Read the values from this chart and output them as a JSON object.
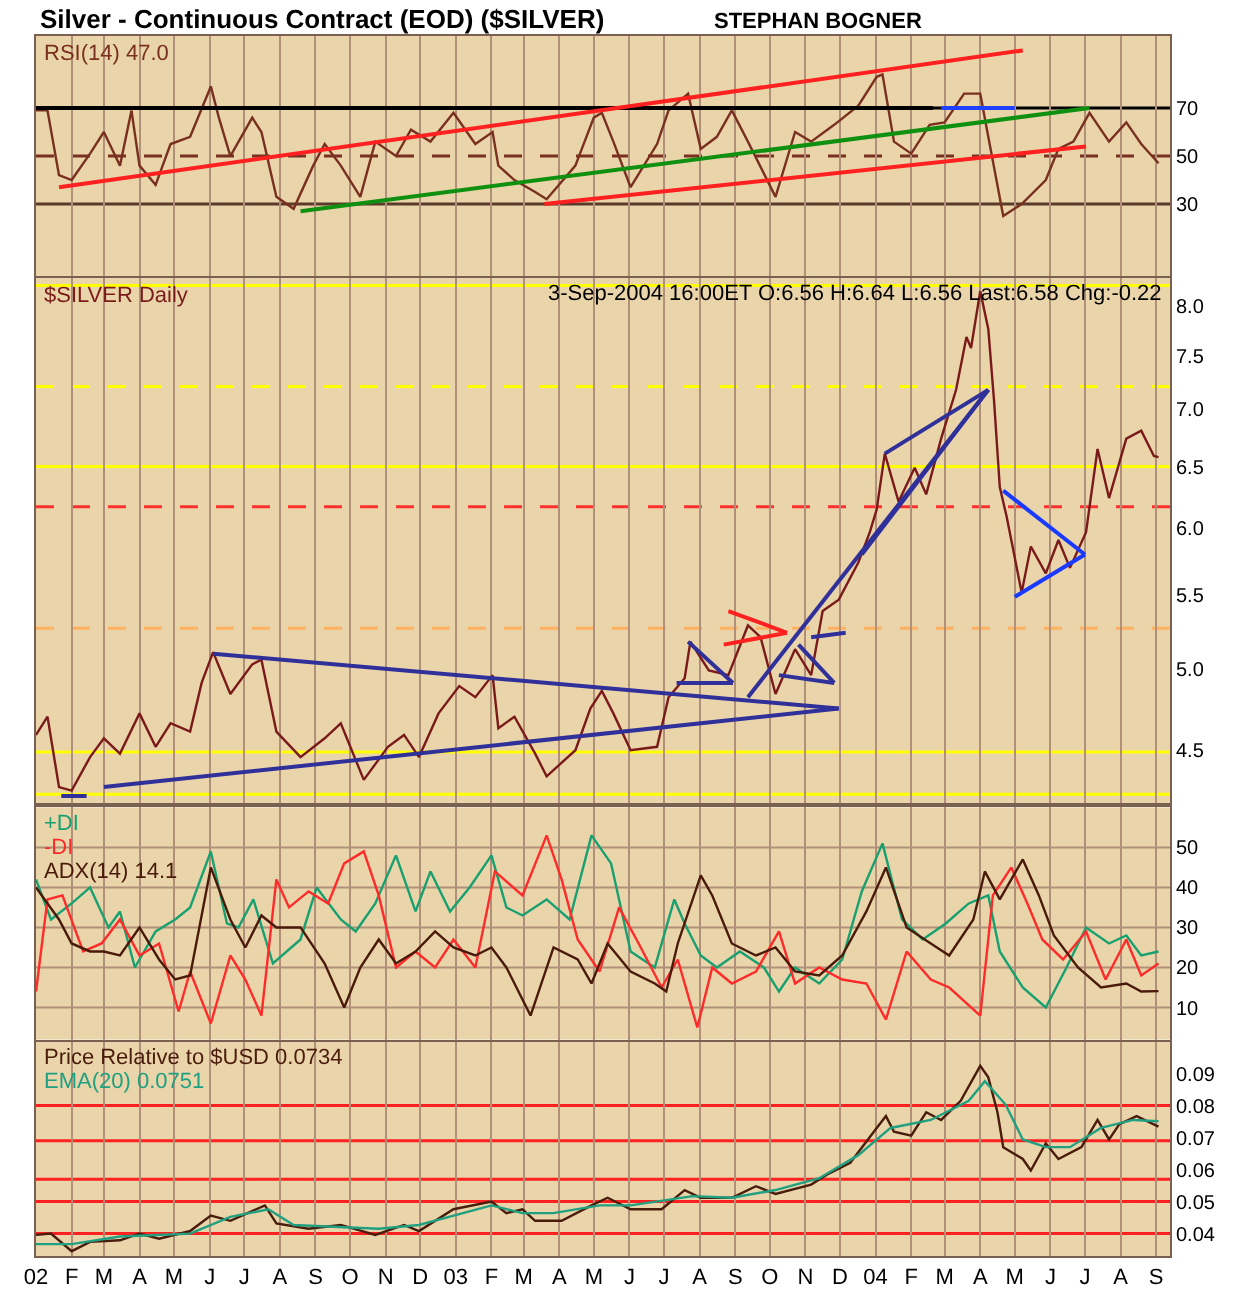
{
  "chart_data": [
    {
      "type": "line",
      "title": "Silver - Continuous Contract (EOD) ($SILVER)",
      "subtitle": "STEPHAN BOGNER",
      "legend": "top left",
      "grid": true,
      "tick_labels": "y",
      "xlim": [
        "2002-01-01",
        "2004-09-13"
      ],
      "xticks": [
        {
          "value": "2002-01-01",
          "label": null
        },
        {
          "value": "2002-02-01",
          "label": null
        },
        {
          "value": "2002-03-01",
          "label": null
        },
        {
          "value": "2002-04-01",
          "label": null
        },
        {
          "value": "2002-05-01",
          "label": null
        },
        {
          "value": "2002-06-01",
          "label": null
        },
        {
          "value": "2002-07-01",
          "label": null
        },
        {
          "value": "2002-08-01",
          "label": null
        },
        {
          "value": "2002-09-01",
          "label": null
        },
        {
          "value": "2002-10-01",
          "label": null
        },
        {
          "value": "2002-11-01",
          "label": null
        },
        {
          "value": "2002-12-01",
          "label": null
        },
        {
          "value": "2003-01-01",
          "label": null
        },
        {
          "value": "2003-02-01",
          "label": null
        },
        {
          "value": "2003-03-01",
          "label": null
        },
        {
          "value": "2003-04-01",
          "label": null
        },
        {
          "value": "2003-05-01",
          "label": null
        },
        {
          "value": "2003-06-01",
          "label": null
        },
        {
          "value": "2003-07-01",
          "label": null
        },
        {
          "value": "2003-08-01",
          "label": null
        },
        {
          "value": "2003-09-01",
          "label": null
        },
        {
          "value": "2003-10-01",
          "label": null
        },
        {
          "value": "2003-11-01",
          "label": null
        },
        {
          "value": "2003-12-01",
          "label": null
        },
        {
          "value": "2004-01-01",
          "label": null
        },
        {
          "value": "2004-02-01",
          "label": null
        },
        {
          "value": "2004-03-01",
          "label": null
        },
        {
          "value": "2004-04-01",
          "label": null
        },
        {
          "value": "2004-05-01",
          "label": null
        },
        {
          "value": "2004-06-01",
          "label": null
        },
        {
          "value": "2004-07-01",
          "label": null
        },
        {
          "value": "2004-08-01",
          "label": null
        },
        {
          "value": "2004-09-01",
          "label": null
        }
      ],
      "ylim": [
        0,
        100
      ],
      "yticks": [
        30,
        50,
        70
      ],
      "ref_lines": [
        {
          "axis": "y",
          "value": 70,
          "color": "#000000",
          "line_style": "solid"
        },
        {
          "axis": "y",
          "value": 50,
          "color": "#7a3020",
          "line_style": "dashed"
        },
        {
          "axis": "y",
          "value": 30,
          "color": "#5a3a2a",
          "line_style": "solid"
        }
      ],
      "series": [
        {
          "name": "RSI(14) 47.0",
          "color": "#7a3020",
          "x": [
            "2002-01-01",
            "2002-01-11",
            "2002-01-21",
            "2002-02-01",
            "2002-02-17",
            "2002-03-01",
            "2002-03-15",
            "2002-03-25",
            "2002-04-01",
            "2002-04-15",
            "2002-04-28",
            "2002-05-15",
            "2002-06-02",
            "2002-06-09",
            "2002-06-19",
            "2002-07-08",
            "2002-07-16",
            "2002-07-29",
            "2002-08-13",
            "2002-08-30",
            "2002-09-09",
            "2002-09-23",
            "2002-10-10",
            "2002-10-23",
            "2002-11-10",
            "2002-11-23",
            "2002-12-10",
            "2002-12-30",
            "2003-01-18",
            "2003-02-02",
            "2003-02-07",
            "2003-02-21",
            "2003-03-11",
            "2003-03-21",
            "2003-04-15",
            "2003-05-01",
            "2003-05-08",
            "2003-05-18",
            "2003-06-02",
            "2003-06-25",
            "2003-07-05",
            "2003-07-22",
            "2003-08-02",
            "2003-08-16",
            "2003-08-29",
            "2003-09-12",
            "2003-10-06",
            "2003-10-23",
            "2003-11-06",
            "2003-11-26",
            "2003-12-17",
            "2004-01-02",
            "2004-01-07",
            "2004-01-17",
            "2004-02-01",
            "2004-02-17",
            "2004-03-01",
            "2004-03-18",
            "2004-04-01",
            "2004-04-08",
            "2004-04-21",
            "2004-05-07",
            "2004-05-28",
            "2004-06-08",
            "2004-06-21",
            "2004-07-05",
            "2004-07-22",
            "2004-08-06",
            "2004-08-19",
            "2004-09-03"
          ],
          "values": [
            69,
            69,
            42,
            40,
            51,
            60,
            46,
            69,
            46,
            38,
            55,
            58,
            79,
            66,
            50,
            66,
            60,
            33,
            28,
            46,
            55,
            46,
            33,
            56,
            50,
            61,
            56,
            68,
            55,
            60,
            46,
            40,
            35,
            32,
            46,
            66,
            68,
            56,
            37,
            55,
            69,
            76,
            53,
            58,
            69,
            56,
            33,
            60,
            56,
            63,
            71,
            83,
            84,
            56,
            51,
            63,
            64,
            76,
            76,
            58,
            25,
            30,
            40,
            53,
            56,
            68,
            56,
            64,
            55,
            47.0
          ]
        },
        {
          "color": "#000000",
          "x": [
            "2002-01-01",
            "2004-02-20"
          ],
          "values": [
            70,
            70
          ]
        },
        {
          "color": "#2040ff",
          "x": [
            "2004-02-27",
            "2004-05-01"
          ],
          "values": [
            70,
            70
          ]
        },
        {
          "color": "#ff2020",
          "x": [
            "2002-01-21",
            "2004-05-08"
          ],
          "values": [
            37,
            94
          ]
        },
        {
          "color": "#109010",
          "x": [
            "2002-08-19",
            "2004-07-05"
          ],
          "values": [
            27,
            70
          ]
        },
        {
          "color": "#ff2020",
          "x": [
            "2003-03-19",
            "2004-07-02"
          ],
          "values": [
            30,
            54
          ]
        }
      ]
    },
    {
      "type": "line",
      "legend": "top left",
      "grid": "x",
      "tick_labels": "y",
      "log": true,
      "annotations": [
        "3-Sep-2004 16:00ET O:6.56 H:6.64 L:6.56 Last:6.58 Chg:-0.22"
      ],
      "xlim": [
        "2002-01-01",
        "2004-09-13"
      ],
      "xticks": [
        {
          "value": "2002-01-01",
          "label": null
        },
        {
          "value": "2002-02-01",
          "label": null
        },
        {
          "value": "2002-03-01",
          "label": null
        },
        {
          "value": "2002-04-01",
          "label": null
        },
        {
          "value": "2002-05-01",
          "label": null
        },
        {
          "value": "2002-06-01",
          "label": null
        },
        {
          "value": "2002-07-01",
          "label": null
        },
        {
          "value": "2002-08-01",
          "label": null
        },
        {
          "value": "2002-09-01",
          "label": null
        },
        {
          "value": "2002-10-01",
          "label": null
        },
        {
          "value": "2002-11-01",
          "label": null
        },
        {
          "value": "2002-12-01",
          "label": null
        },
        {
          "value": "2003-01-01",
          "label": null
        },
        {
          "value": "2003-02-01",
          "label": null
        },
        {
          "value": "2003-03-01",
          "label": null
        },
        {
          "value": "2003-04-01",
          "label": null
        },
        {
          "value": "2003-05-01",
          "label": null
        },
        {
          "value": "2003-06-01",
          "label": null
        },
        {
          "value": "2003-07-01",
          "label": null
        },
        {
          "value": "2003-08-01",
          "label": null
        },
        {
          "value": "2003-09-01",
          "label": null
        },
        {
          "value": "2003-10-01",
          "label": null
        },
        {
          "value": "2003-11-01",
          "label": null
        },
        {
          "value": "2003-12-01",
          "label": null
        },
        {
          "value": "2004-01-01",
          "label": null
        },
        {
          "value": "2004-02-01",
          "label": null
        },
        {
          "value": "2004-03-01",
          "label": null
        },
        {
          "value": "2004-04-01",
          "label": null
        },
        {
          "value": "2004-05-01",
          "label": null
        },
        {
          "value": "2004-06-01",
          "label": null
        },
        {
          "value": "2004-07-01",
          "label": null
        },
        {
          "value": "2004-08-01",
          "label": null
        },
        {
          "value": "2004-09-01",
          "label": null
        }
      ],
      "ylim": [
        4.2,
        8.3
      ],
      "yticks": [
        {
          "value": 4.5,
          "label": "4.5"
        },
        {
          "value": 5,
          "label": "5.0"
        },
        {
          "value": 5.5,
          "label": "5.5"
        },
        {
          "value": 6,
          "label": "6.0"
        },
        {
          "value": 6.5,
          "label": "6.5"
        },
        {
          "value": 7,
          "label": "7.0"
        },
        {
          "value": 7.5,
          "label": "7.5"
        },
        {
          "value": 8,
          "label": "8.0"
        }
      ],
      "ref_lines": [
        {
          "axis": "y",
          "value": 8.22,
          "color": "#ffff00",
          "line_style": "solid"
        },
        {
          "axis": "y",
          "value": 7.21,
          "color": "#ffff00",
          "line_style": "dashed"
        },
        {
          "axis": "y",
          "value": 6.5,
          "color": "#ffff00",
          "line_style": "solid"
        },
        {
          "axis": "y",
          "value": 6.17,
          "color": "#ff3030",
          "line_style": "dashed"
        },
        {
          "axis": "y",
          "value": 5.27,
          "color": "#ffb060",
          "line_style": "dashed"
        },
        {
          "axis": "y",
          "value": 4.49,
          "color": "#ffff00",
          "line_style": "solid"
        },
        {
          "axis": "y",
          "value": 4.25,
          "color": "#ffff00",
          "line_style": "solid"
        }
      ],
      "series": [
        {
          "name": "$SILVER Daily",
          "color": "#7a1a1a",
          "x": [
            "2002-01-01",
            "2002-01-11",
            "2002-01-21",
            "2002-02-01",
            "2002-02-17",
            "2002-03-01",
            "2002-03-15",
            "2002-04-01",
            "2002-04-15",
            "2002-04-28",
            "2002-05-15",
            "2002-05-25",
            "2002-06-04",
            "2002-06-19",
            "2002-07-08",
            "2002-07-16",
            "2002-07-29",
            "2002-08-19",
            "2002-09-09",
            "2002-09-23",
            "2002-10-13",
            "2002-11-03",
            "2002-11-17",
            "2002-11-30",
            "2002-12-17",
            "2003-01-04",
            "2003-01-18",
            "2003-02-02",
            "2003-02-07",
            "2003-02-21",
            "2003-03-11",
            "2003-03-21",
            "2003-04-15",
            "2003-04-28",
            "2003-05-08",
            "2003-05-18",
            "2003-06-02",
            "2003-06-25",
            "2003-07-05",
            "2003-07-19",
            "2003-07-24",
            "2003-08-09",
            "2003-08-26",
            "2003-09-12",
            "2003-09-23",
            "2003-10-06",
            "2003-10-23",
            "2003-11-06",
            "2003-11-16",
            "2003-11-30",
            "2003-12-17",
            "2003-12-27",
            "2004-01-02",
            "2004-01-09",
            "2004-01-21",
            "2004-02-04",
            "2004-02-14",
            "2004-02-27",
            "2004-03-11",
            "2004-03-20",
            "2004-03-24",
            "2004-04-01",
            "2004-04-08",
            "2004-04-13",
            "2004-04-18",
            "2004-04-24",
            "2004-04-28",
            "2004-05-07",
            "2004-05-15",
            "2004-05-28",
            "2004-06-08",
            "2004-06-18",
            "2004-07-02",
            "2004-07-12",
            "2004-07-22",
            "2004-08-06",
            "2004-08-19",
            "2004-08-30",
            "2004-09-03"
          ],
          "values": [
            4.59,
            4.7,
            4.29,
            4.27,
            4.46,
            4.57,
            4.48,
            4.72,
            4.52,
            4.66,
            4.61,
            4.91,
            5.11,
            4.84,
            5.03,
            5.06,
            4.61,
            4.46,
            4.57,
            4.66,
            4.33,
            4.52,
            4.59,
            4.46,
            4.72,
            4.89,
            4.82,
            4.96,
            4.63,
            4.7,
            4.48,
            4.35,
            4.5,
            4.75,
            4.86,
            4.72,
            4.5,
            4.52,
            4.82,
            4.94,
            5.18,
            4.99,
            4.96,
            5.29,
            5.21,
            4.84,
            5.13,
            4.96,
            5.39,
            5.47,
            5.74,
            5.97,
            6.15,
            6.61,
            6.21,
            6.49,
            6.27,
            6.74,
            7.18,
            7.69,
            7.58,
            8.16,
            7.77,
            7.08,
            6.33,
            6.09,
            5.91,
            5.52,
            5.86,
            5.66,
            5.91,
            5.7,
            5.97,
            6.65,
            6.24,
            6.74,
            6.81,
            6.59,
            6.58
          ]
        },
        {
          "color": "#30309a",
          "x": [
            "2002-01-23",
            "2002-02-14"
          ],
          "values": [
            4.24,
            4.24
          ]
        },
        {
          "color": "#30309a",
          "x": [
            "2002-03-01",
            "2003-11-30"
          ],
          "values": [
            4.29,
            4.75
          ]
        },
        {
          "color": "#30309a",
          "x": [
            "2002-06-04",
            "2003-11-30"
          ],
          "values": [
            5.1,
            4.75
          ]
        },
        {
          "color": "#30309a",
          "x": [
            "2003-09-12",
            "2004-04-08"
          ],
          "values": [
            4.82,
            7.18
          ]
        },
        {
          "color": "#30309a",
          "x": [
            "2003-12-20",
            "2004-04-08"
          ],
          "values": [
            5.8,
            7.18
          ]
        },
        {
          "color": "#30309a",
          "x": [
            "2004-01-09",
            "2004-04-08"
          ],
          "values": [
            6.61,
            7.18
          ]
        },
        {
          "color": "#30309a",
          "x": [
            "2003-07-22",
            "2003-08-30"
          ],
          "values": [
            5.18,
            4.91
          ]
        },
        {
          "color": "#30309a",
          "x": [
            "2003-07-12",
            "2003-08-30"
          ],
          "values": [
            4.91,
            4.91
          ]
        },
        {
          "color": "#ff2020",
          "x": [
            "2003-08-26",
            "2003-10-16"
          ],
          "values": [
            5.39,
            5.24
          ]
        },
        {
          "color": "#ff2020",
          "x": [
            "2003-08-22",
            "2003-10-16"
          ],
          "values": [
            5.16,
            5.24
          ]
        },
        {
          "color": "#30309a",
          "x": [
            "2003-10-26",
            "2003-11-26"
          ],
          "values": [
            5.16,
            4.91
          ]
        },
        {
          "color": "#30309a",
          "x": [
            "2003-10-09",
            "2003-11-26"
          ],
          "values": [
            4.96,
            4.91
          ]
        },
        {
          "color": "#30309a",
          "x": [
            "2003-11-06",
            "2003-12-06"
          ],
          "values": [
            5.21,
            5.24
          ]
        },
        {
          "color": "#1a3aff",
          "x": [
            "2004-04-21",
            "2004-07-01"
          ],
          "values": [
            6.3,
            5.8
          ]
        },
        {
          "color": "#1a3aff",
          "x": [
            "2004-05-01",
            "2004-07-01"
          ],
          "values": [
            5.49,
            5.8
          ]
        }
      ]
    },
    {
      "type": "line",
      "legend": "top left",
      "grid": true,
      "tick_labels": "y",
      "xlim": [
        "2002-01-01",
        "2004-09-13"
      ],
      "xticks": [
        {
          "value": "2002-01-01",
          "label": null
        },
        {
          "value": "2002-02-01",
          "label": null
        },
        {
          "value": "2002-03-01",
          "label": null
        },
        {
          "value": "2002-04-01",
          "label": null
        },
        {
          "value": "2002-05-01",
          "label": null
        },
        {
          "value": "2002-06-01",
          "label": null
        },
        {
          "value": "2002-07-01",
          "label": null
        },
        {
          "value": "2002-08-01",
          "label": null
        },
        {
          "value": "2002-09-01",
          "label": null
        },
        {
          "value": "2002-10-01",
          "label": null
        },
        {
          "value": "2002-11-01",
          "label": null
        },
        {
          "value": "2002-12-01",
          "label": null
        },
        {
          "value": "2003-01-01",
          "label": null
        },
        {
          "value": "2003-02-01",
          "label": null
        },
        {
          "value": "2003-03-01",
          "label": null
        },
        {
          "value": "2003-04-01",
          "label": null
        },
        {
          "value": "2003-05-01",
          "label": null
        },
        {
          "value": "2003-06-01",
          "label": null
        },
        {
          "value": "2003-07-01",
          "label": null
        },
        {
          "value": "2003-08-01",
          "label": null
        },
        {
          "value": "2003-09-01",
          "label": null
        },
        {
          "value": "2003-10-01",
          "label": null
        },
        {
          "value": "2003-11-01",
          "label": null
        },
        {
          "value": "2003-12-01",
          "label": null
        },
        {
          "value": "2004-01-01",
          "label": null
        },
        {
          "value": "2004-02-01",
          "label": null
        },
        {
          "value": "2004-03-01",
          "label": null
        },
        {
          "value": "2004-04-01",
          "label": null
        },
        {
          "value": "2004-05-01",
          "label": null
        },
        {
          "value": "2004-06-01",
          "label": null
        },
        {
          "value": "2004-07-01",
          "label": null
        },
        {
          "value": "2004-08-01",
          "label": null
        },
        {
          "value": "2004-09-01",
          "label": null
        }
      ],
      "ylim": [
        2,
        60
      ],
      "yticks": [
        10,
        20,
        30,
        40,
        50
      ],
      "series": [
        {
          "name": "+DI",
          "color": "#18a070",
          "x": [
            "2002-01-01",
            "2002-01-14",
            "2002-02-01",
            "2002-02-17",
            "2002-03-05",
            "2002-03-15",
            "2002-03-28",
            "2002-04-15",
            "2002-05-02",
            "2002-05-15",
            "2002-06-02",
            "2002-06-16",
            "2002-06-26",
            "2002-07-09",
            "2002-07-26",
            "2002-08-19",
            "2002-09-02",
            "2002-09-23",
            "2002-10-06",
            "2002-10-23",
            "2002-11-10",
            "2002-11-27",
            "2002-12-10",
            "2002-12-27",
            "2003-01-13",
            "2003-02-01",
            "2003-02-14",
            "2003-02-28",
            "2003-03-21",
            "2003-04-10",
            "2003-04-29",
            "2003-05-16",
            "2003-06-02",
            "2003-06-23",
            "2003-07-10",
            "2003-07-19",
            "2003-08-02",
            "2003-08-16",
            "2003-09-05",
            "2003-09-26",
            "2003-10-09",
            "2003-10-23",
            "2003-11-13",
            "2003-12-03",
            "2003-12-20",
            "2004-01-07",
            "2004-01-24",
            "2004-02-11",
            "2004-03-02",
            "2004-03-22",
            "2004-04-08",
            "2004-04-18",
            "2004-05-08",
            "2004-05-28",
            "2004-06-15",
            "2004-07-02",
            "2004-07-22",
            "2004-08-06",
            "2004-08-19",
            "2004-09-03"
          ],
          "values": [
            42,
            32,
            36,
            40,
            30,
            34,
            20,
            29,
            32,
            35,
            49,
            31,
            30,
            37,
            21,
            27,
            40,
            32,
            29,
            36,
            48,
            34,
            44,
            34,
            40,
            48,
            35,
            33,
            37,
            32,
            53,
            46,
            24,
            20,
            37,
            31,
            23,
            20,
            24,
            20,
            14,
            20,
            16,
            22,
            39,
            51,
            32,
            27,
            31,
            36,
            38,
            24,
            15,
            10,
            20,
            30,
            26,
            28,
            23,
            24
          ]
        },
        {
          "name": "-DI",
          "color": "#ff2a2a",
          "x": [
            "2002-01-01",
            "2002-01-11",
            "2002-01-24",
            "2002-02-11",
            "2002-02-27",
            "2002-03-15",
            "2002-04-01",
            "2002-04-18",
            "2002-05-05",
            "2002-05-15",
            "2002-06-02",
            "2002-06-19",
            "2002-07-02",
            "2002-07-16",
            "2002-07-29",
            "2002-08-09",
            "2002-08-26",
            "2002-09-12",
            "2002-09-26",
            "2002-10-13",
            "2002-10-26",
            "2002-11-10",
            "2002-11-27",
            "2002-12-14",
            "2002-12-30",
            "2003-01-18",
            "2003-02-04",
            "2003-02-28",
            "2003-03-21",
            "2003-04-03",
            "2003-04-17",
            "2003-05-06",
            "2003-05-23",
            "2003-06-09",
            "2003-06-29",
            "2003-07-13",
            "2003-07-30",
            "2003-08-12",
            "2003-08-29",
            "2003-09-19",
            "2003-10-09",
            "2003-10-23",
            "2003-11-13",
            "2003-12-03",
            "2003-12-24",
            "2004-01-10",
            "2004-01-28",
            "2004-02-18",
            "2004-03-05",
            "2004-04-01",
            "2004-04-12",
            "2004-04-28",
            "2004-05-12",
            "2004-05-25",
            "2004-06-12",
            "2004-07-02",
            "2004-07-19",
            "2004-08-06",
            "2004-08-19",
            "2004-09-03"
          ],
          "values": [
            14,
            37,
            38,
            24,
            26,
            32,
            23,
            26,
            9,
            19,
            6,
            23,
            17,
            8,
            42,
            35,
            39,
            36,
            46,
            49,
            38,
            20,
            24,
            20,
            27,
            20,
            44,
            38,
            53,
            42,
            27,
            19,
            35,
            26,
            15,
            22,
            5,
            20,
            16,
            19,
            29,
            16,
            20,
            17,
            16,
            7,
            24,
            17,
            15,
            8,
            38,
            45,
            36,
            27,
            22,
            29,
            17,
            27,
            18,
            21
          ]
        },
        {
          "name": "ADX(14) 14.1",
          "color": "#4a1a0a",
          "x": [
            "2002-01-01",
            "2002-01-21",
            "2002-02-01",
            "2002-02-17",
            "2002-03-01",
            "2002-03-15",
            "2002-04-01",
            "2002-04-18",
            "2002-05-02",
            "2002-05-15",
            "2002-06-02",
            "2002-06-19",
            "2002-07-02",
            "2002-07-16",
            "2002-07-29",
            "2002-08-19",
            "2002-09-09",
            "2002-09-26",
            "2002-10-10",
            "2002-10-26",
            "2002-11-10",
            "2002-11-27",
            "2002-12-14",
            "2002-12-30",
            "2003-01-18",
            "2003-02-01",
            "2003-02-14",
            "2003-03-07",
            "2003-03-27",
            "2003-04-17",
            "2003-04-29",
            "2003-05-13",
            "2003-06-02",
            "2003-06-23",
            "2003-07-03",
            "2003-07-13",
            "2003-08-02",
            "2003-08-12",
            "2003-08-29",
            "2003-09-19",
            "2003-10-06",
            "2003-10-23",
            "2003-11-13",
            "2003-12-03",
            "2003-12-24",
            "2004-01-10",
            "2004-01-28",
            "2004-02-18",
            "2004-03-05",
            "2004-03-26",
            "2004-04-05",
            "2004-04-18",
            "2004-05-08",
            "2004-05-22",
            "2004-06-04",
            "2004-06-25",
            "2004-07-15",
            "2004-08-06",
            "2004-08-19",
            "2004-09-03"
          ],
          "values": [
            40,
            32,
            26,
            24,
            24,
            23,
            30,
            22,
            17,
            18,
            45,
            32,
            25,
            33,
            30,
            30,
            21,
            10,
            20,
            27,
            21,
            24,
            29,
            25,
            23,
            25,
            20,
            8,
            25,
            22,
            16,
            26,
            19,
            16,
            14,
            26,
            43,
            38,
            26,
            23,
            25,
            19,
            18,
            23,
            34,
            45,
            30,
            26,
            23,
            32,
            44,
            37,
            47,
            38,
            28,
            20,
            15,
            16,
            14,
            14.1
          ]
        }
      ]
    },
    {
      "type": "line",
      "legend": "top left",
      "grid": "x",
      "xlim": [
        "2002-01-01",
        "2004-09-13"
      ],
      "xticks": [
        {
          "value": "2002-01-01",
          "label": "02"
        },
        {
          "value": "2002-02-01",
          "label": "F"
        },
        {
          "value": "2002-03-01",
          "label": "M"
        },
        {
          "value": "2002-04-01",
          "label": "A"
        },
        {
          "value": "2002-05-01",
          "label": "M"
        },
        {
          "value": "2002-06-01",
          "label": "J"
        },
        {
          "value": "2002-07-01",
          "label": "J"
        },
        {
          "value": "2002-08-01",
          "label": "A"
        },
        {
          "value": "2002-09-01",
          "label": "S"
        },
        {
          "value": "2002-10-01",
          "label": "O"
        },
        {
          "value": "2002-11-01",
          "label": "N"
        },
        {
          "value": "2002-12-01",
          "label": "D"
        },
        {
          "value": "2003-01-01",
          "label": "03"
        },
        {
          "value": "2003-02-01",
          "label": "F"
        },
        {
          "value": "2003-03-01",
          "label": "M"
        },
        {
          "value": "2003-04-01",
          "label": "A"
        },
        {
          "value": "2003-05-01",
          "label": "M"
        },
        {
          "value": "2003-06-01",
          "label": "J"
        },
        {
          "value": "2003-07-01",
          "label": "J"
        },
        {
          "value": "2003-08-01",
          "label": "A"
        },
        {
          "value": "2003-09-01",
          "label": "S"
        },
        {
          "value": "2003-10-01",
          "label": "O"
        },
        {
          "value": "2003-11-01",
          "label": "N"
        },
        {
          "value": "2003-12-01",
          "label": "D"
        },
        {
          "value": "2004-01-01",
          "label": "04"
        },
        {
          "value": "2004-02-01",
          "label": "F"
        },
        {
          "value": "2004-03-01",
          "label": "M"
        },
        {
          "value": "2004-04-01",
          "label": "A"
        },
        {
          "value": "2004-05-01",
          "label": "M"
        },
        {
          "value": "2004-06-01",
          "label": "J"
        },
        {
          "value": "2004-07-01",
          "label": "J"
        },
        {
          "value": "2004-08-01",
          "label": "A"
        },
        {
          "value": "2004-09-01",
          "label": "S"
        }
      ],
      "ylim": [
        0.033,
        0.1
      ],
      "yticks": [
        0.04,
        0.05,
        0.06,
        0.07,
        0.08,
        0.09
      ],
      "ref_lines": [
        {
          "axis": "y",
          "value": 0.08,
          "color": "#ff2020",
          "line_style": "solid"
        },
        {
          "axis": "y",
          "value": 0.069,
          "color": "#ff2020",
          "line_style": "solid"
        },
        {
          "axis": "y",
          "value": 0.057,
          "color": "#ff2020",
          "line_style": "solid"
        },
        {
          "axis": "y",
          "value": 0.05,
          "color": "#ff2020",
          "line_style": "solid"
        },
        {
          "axis": "y",
          "value": 0.04,
          "color": "#ff2020",
          "line_style": "solid"
        }
      ],
      "series": [
        {
          "name": "Price Relative to $USD 0.0734",
          "color": "#4a1c0c",
          "x": [
            "2002-01-01",
            "2002-01-14",
            "2002-02-01",
            "2002-02-17",
            "2002-03-15",
            "2002-04-01",
            "2002-04-18",
            "2002-05-15",
            "2002-06-02",
            "2002-06-19",
            "2002-07-19",
            "2002-07-29",
            "2002-08-26",
            "2002-09-23",
            "2002-10-23",
            "2002-11-17",
            "2002-11-30",
            "2002-12-30",
            "2003-02-01",
            "2003-02-14",
            "2003-02-28",
            "2003-03-11",
            "2003-04-03",
            "2003-04-29",
            "2003-05-13",
            "2003-06-02",
            "2003-06-29",
            "2003-07-19",
            "2003-08-02",
            "2003-08-29",
            "2003-09-19",
            "2003-10-06",
            "2003-11-06",
            "2003-11-20",
            "2003-12-10",
            "2004-01-02",
            "2004-01-10",
            "2004-01-17",
            "2004-02-01",
            "2004-02-14",
            "2004-02-27",
            "2004-03-15",
            "2004-04-01",
            "2004-04-08",
            "2004-04-16",
            "2004-04-21",
            "2004-05-08",
            "2004-05-15",
            "2004-05-28",
            "2004-06-08",
            "2004-06-28",
            "2004-07-12",
            "2004-07-22",
            "2004-07-31",
            "2004-08-15",
            "2004-09-03"
          ],
          "values": [
            0.0396,
            0.04,
            0.0345,
            0.0374,
            0.0379,
            0.04,
            0.0384,
            0.0408,
            0.0456,
            0.044,
            0.0488,
            0.0432,
            0.0415,
            0.0427,
            0.0396,
            0.0427,
            0.0408,
            0.0476,
            0.05,
            0.0464,
            0.0476,
            0.044,
            0.044,
            0.0488,
            0.0512,
            0.0476,
            0.0476,
            0.0536,
            0.0512,
            0.0512,
            0.0548,
            0.0524,
            0.0553,
            0.0585,
            0.0621,
            0.073,
            0.0767,
            0.0718,
            0.0706,
            0.0779,
            0.0755,
            0.0815,
            0.0924,
            0.0888,
            0.0779,
            0.067,
            0.0633,
            0.0597,
            0.0682,
            0.0633,
            0.067,
            0.0755,
            0.0694,
            0.0742,
            0.0767,
            0.0734
          ]
        },
        {
          "name": "EMA(20) 0.0751",
          "color": "#20a080",
          "x": [
            "2002-01-01",
            "2002-02-01",
            "2002-03-15",
            "2002-05-15",
            "2002-06-19",
            "2002-07-22",
            "2002-08-13",
            "2002-10-26",
            "2002-11-30",
            "2003-02-01",
            "2003-02-28",
            "2003-03-27",
            "2003-05-06",
            "2003-06-02",
            "2003-07-26",
            "2003-08-29",
            "2003-10-06",
            "2003-11-13",
            "2003-12-17",
            "2004-01-14",
            "2004-02-18",
            "2004-03-22",
            "2004-04-05",
            "2004-04-23",
            "2004-05-08",
            "2004-05-28",
            "2004-06-18",
            "2004-07-15",
            "2004-08-12",
            "2004-09-03"
          ],
          "values": [
            0.0367,
            0.0367,
            0.0391,
            0.04,
            0.0452,
            0.0476,
            0.0427,
            0.0415,
            0.0427,
            0.0488,
            0.0464,
            0.0464,
            0.0488,
            0.0488,
            0.0517,
            0.0512,
            0.0536,
            0.0573,
            0.0645,
            0.073,
            0.0755,
            0.0815,
            0.0876,
            0.0803,
            0.0694,
            0.067,
            0.067,
            0.073,
            0.0755,
            0.0751
          ]
        }
      ]
    }
  ]
}
